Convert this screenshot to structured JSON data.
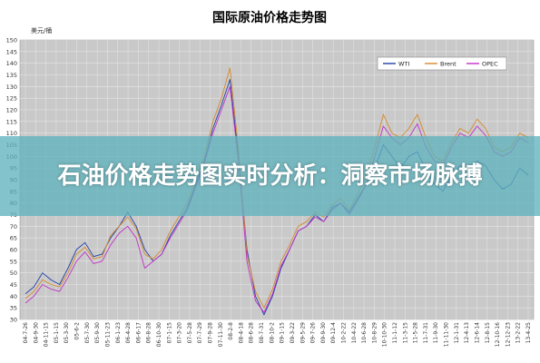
{
  "chart_data": {
    "type": "line",
    "title": "国际原油价格走势图",
    "ylabel": "美元/桶",
    "xlabel": "",
    "ylim": [
      30,
      150
    ],
    "y_ticks": [
      30,
      35,
      40,
      45,
      50,
      55,
      60,
      65,
      70,
      75,
      80,
      85,
      90,
      95,
      100,
      105,
      110,
      115,
      120,
      125,
      130,
      135,
      140,
      145,
      150
    ],
    "x_tick_labels": [
      "04-7-26",
      "04-9-30",
      "04-11-15",
      "05-1-15",
      "05-3-30",
      "05-6-2",
      "05-7-30",
      "05-9-30",
      "05-11-23",
      "06-1-23",
      "06-4-28",
      "06-6-17",
      "06-8-28",
      "06-10-30",
      "07-1-15",
      "07-3-20",
      "07-5-28",
      "07-7-29",
      "07-9-28",
      "07-11-30",
      "08-2-8",
      "08-4-18",
      "08-6-28",
      "08-7-31",
      "08-10-2",
      "09-1-15",
      "09-3-22",
      "09-5-29",
      "09-7-26",
      "09-9-30",
      "09-12-4",
      "10-2-22",
      "10-4-22",
      "10-6-28",
      "10-8-29",
      "10-10-30",
      "11-1-12",
      "11-3-15",
      "11-5-28",
      "11-7-31",
      "11-9-30",
      "11-11-30",
      "12-1-31",
      "12-4-13",
      "12-6-14",
      "12-8-15",
      "12-10-16",
      "12-12-23",
      "13-2-22",
      "13-4-25"
    ],
    "legend": {
      "position": "top-right"
    },
    "grid": true,
    "series": [
      {
        "name": "WTI",
        "color": "#1f3fa8",
        "values": [
          41,
          44,
          50,
          47,
          45,
          52,
          60,
          63,
          57,
          58,
          65,
          70,
          76,
          70,
          60,
          55,
          58,
          66,
          72,
          78,
          88,
          98,
          112,
          122,
          133,
          100,
          60,
          40,
          32,
          40,
          52,
          60,
          68,
          70,
          75,
          72,
          78,
          80,
          76,
          82,
          88,
          95,
          105,
          100,
          95,
          100,
          102,
          94,
          88,
          85,
          92,
          96,
          94,
          98,
          96,
          90,
          86,
          88,
          95,
          92
        ]
      },
      {
        "name": "Brent",
        "color": "#d58a2a",
        "values": [
          39,
          42,
          47,
          45,
          44,
          50,
          58,
          61,
          56,
          57,
          66,
          70,
          74,
          69,
          58,
          56,
          60,
          68,
          74,
          80,
          90,
          100,
          115,
          125,
          138,
          103,
          58,
          42,
          35,
          43,
          55,
          62,
          70,
          72,
          76,
          74,
          79,
          82,
          77,
          84,
          92,
          104,
          118,
          110,
          108,
          112,
          118,
          108,
          100,
          98,
          106,
          112,
          110,
          116,
          112,
          104,
          102,
          104,
          110,
          108
        ]
      },
      {
        "name": "OPEC",
        "color": "#c030c8",
        "values": [
          37,
          40,
          45,
          43,
          42,
          48,
          55,
          59,
          54,
          55,
          62,
          67,
          70,
          65,
          52,
          55,
          58,
          65,
          71,
          77,
          87,
          97,
          110,
          120,
          130,
          98,
          55,
          38,
          33,
          41,
          53,
          60,
          68,
          70,
          74,
          72,
          77,
          80,
          75,
          81,
          88,
          100,
          113,
          108,
          105,
          108,
          114,
          104,
          98,
          96,
          104,
          110,
          108,
          113,
          109,
          102,
          100,
          102,
          108,
          106
        ]
      }
    ]
  },
  "banner": {
    "text": "石油价格走势图实时分析：洞察市场脉搏"
  },
  "colors": {
    "plot_bg": "#c9c9c9",
    "grid": "#e6e6e6",
    "banner": "#60b2bc"
  }
}
